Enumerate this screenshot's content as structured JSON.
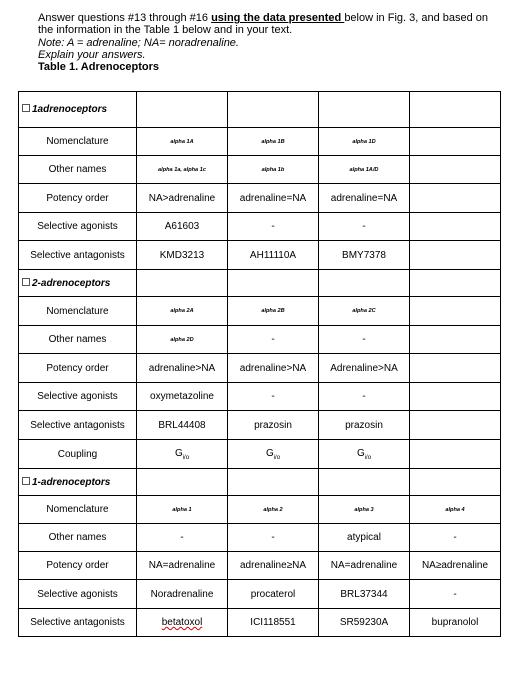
{
  "intro": {
    "line1_pre": "Answer questions #13 through #16 ",
    "line1_emph": "using the data presented ",
    "line1_post": "below in Fig. 3, and based on",
    "line2": "the information in the Table 1 below and in your text.",
    "line3": "Note: A = adrenaline; NA= noradrenaline.",
    "line4": "Explain your answers.",
    "line5": "Table 1. Adrenoceptors"
  },
  "table": {
    "sections": [
      {
        "title": "1adrenoceptors",
        "rows": [
          {
            "label": "Nomenclature",
            "small": true,
            "cells": [
              "alpha 1A",
              "alpha 1B",
              "alpha 1D",
              ""
            ]
          },
          {
            "label": "Other names",
            "small": true,
            "cells": [
              "alpha 1a, alpha 1c",
              "alpha 1b",
              "alpha 1A/D",
              ""
            ]
          },
          {
            "label": "Potency order",
            "cells": [
              "NA>adrenaline",
              "adrenaline=NA",
              "adrenaline=NA",
              ""
            ]
          },
          {
            "label": "Selective agonists",
            "cells": [
              "A61603",
              "-",
              "-",
              ""
            ]
          },
          {
            "label": "Selective antagonists",
            "cells": [
              "KMD3213",
              "AH11110A",
              "BMY7378",
              ""
            ]
          }
        ]
      },
      {
        "title": "2-adrenoceptors",
        "rows": [
          {
            "label": "Nomenclature",
            "small": true,
            "cells": [
              "alpha 2A",
              "alpha 2B",
              "alpha 2C",
              ""
            ]
          },
          {
            "label": "Other names",
            "small_first": true,
            "cells": [
              "alpha 2D",
              "-",
              "-",
              ""
            ]
          },
          {
            "label": "Potency order",
            "cells": [
              "adrenaline>NA",
              "adrenaline>NA",
              "Adrenaline>NA",
              ""
            ]
          },
          {
            "label": "Selective agonists",
            "cells": [
              "oxymetazoline",
              "-",
              "-",
              ""
            ]
          },
          {
            "label": "Selective antagonists",
            "cells": [
              "BRL44408",
              "prazosin",
              "prazosin",
              ""
            ]
          },
          {
            "label": "Coupling",
            "coupling": true,
            "cells": [
              "G",
              "G",
              "G",
              ""
            ],
            "subs": [
              "i/o",
              "i/o",
              "i/o",
              ""
            ]
          }
        ]
      },
      {
        "title": "1-adrenoceptors",
        "rows": [
          {
            "label": "Nomenclature",
            "small": true,
            "cells": [
              "alpha 1",
              "alpha 2",
              "alpha 3",
              "alpha 4"
            ]
          },
          {
            "label": "Other names",
            "cells": [
              "-",
              "-",
              "atypical",
              "-"
            ]
          },
          {
            "label": "Potency order",
            "cells": [
              "NA=adrenaline",
              "adrenaline≥NA",
              "NA=adrenaline",
              "NA≥adrenaline"
            ]
          },
          {
            "label": "Selective agonists",
            "cells": [
              "Noradrenaline",
              "procaterol",
              "BRL37344",
              "-"
            ]
          },
          {
            "label": "Selective antagonists",
            "cells": [
              "betatoxol",
              "ICI118551",
              "SR59230A",
              "bupranolol"
            ],
            "misspelled_index": 0
          }
        ]
      }
    ]
  }
}
